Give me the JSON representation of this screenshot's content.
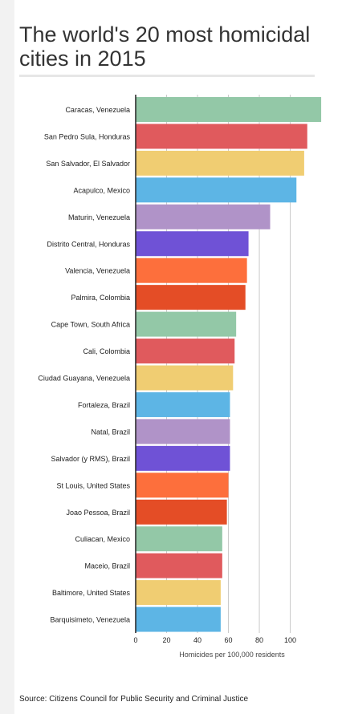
{
  "title": "The world's 20 most homicidal cities in 2015",
  "source": "Source: Citizens Council for Public Security and Criminal Justice",
  "chart_data": {
    "type": "bar",
    "orientation": "horizontal",
    "xlabel": "Homicides per 100,000 residents",
    "xlim": [
      0,
      121
    ],
    "xticks": [
      0,
      20,
      40,
      60,
      80,
      100
    ],
    "grid": true,
    "categories": [
      "Caracas, Venezuela",
      "San Pedro Sula, Honduras",
      "San Salvador, El Salvador",
      "Acapulco, Mexico",
      "Maturin, Venezuela",
      "Distrito Central, Honduras",
      "Valencia, Venezuela",
      "Palmira, Colombia",
      "Cape Town, South Africa",
      "Cali, Colombia",
      "Ciudad Guayana, Venezuela",
      "Fortaleza, Brazil",
      "Natal, Brazil",
      "Salvador (y RMS), Brazil",
      "St Louis, United States",
      "Joao Pessoa, Brazil",
      "Culiacan, Mexico",
      "Maceio, Brazil",
      "Baltimore, United States",
      "Barquisimeto, Venezuela"
    ],
    "values": [
      120,
      111,
      109,
      104,
      87,
      73,
      72,
      71,
      65,
      64,
      63,
      61,
      61,
      61,
      60,
      59,
      56,
      56,
      55,
      55
    ],
    "colors": [
      "#93c8a7",
      "#e05a5d",
      "#f0cd72",
      "#5db5e5",
      "#b093c8",
      "#6f52d6",
      "#fd6f3c",
      "#e44d26"
    ]
  }
}
